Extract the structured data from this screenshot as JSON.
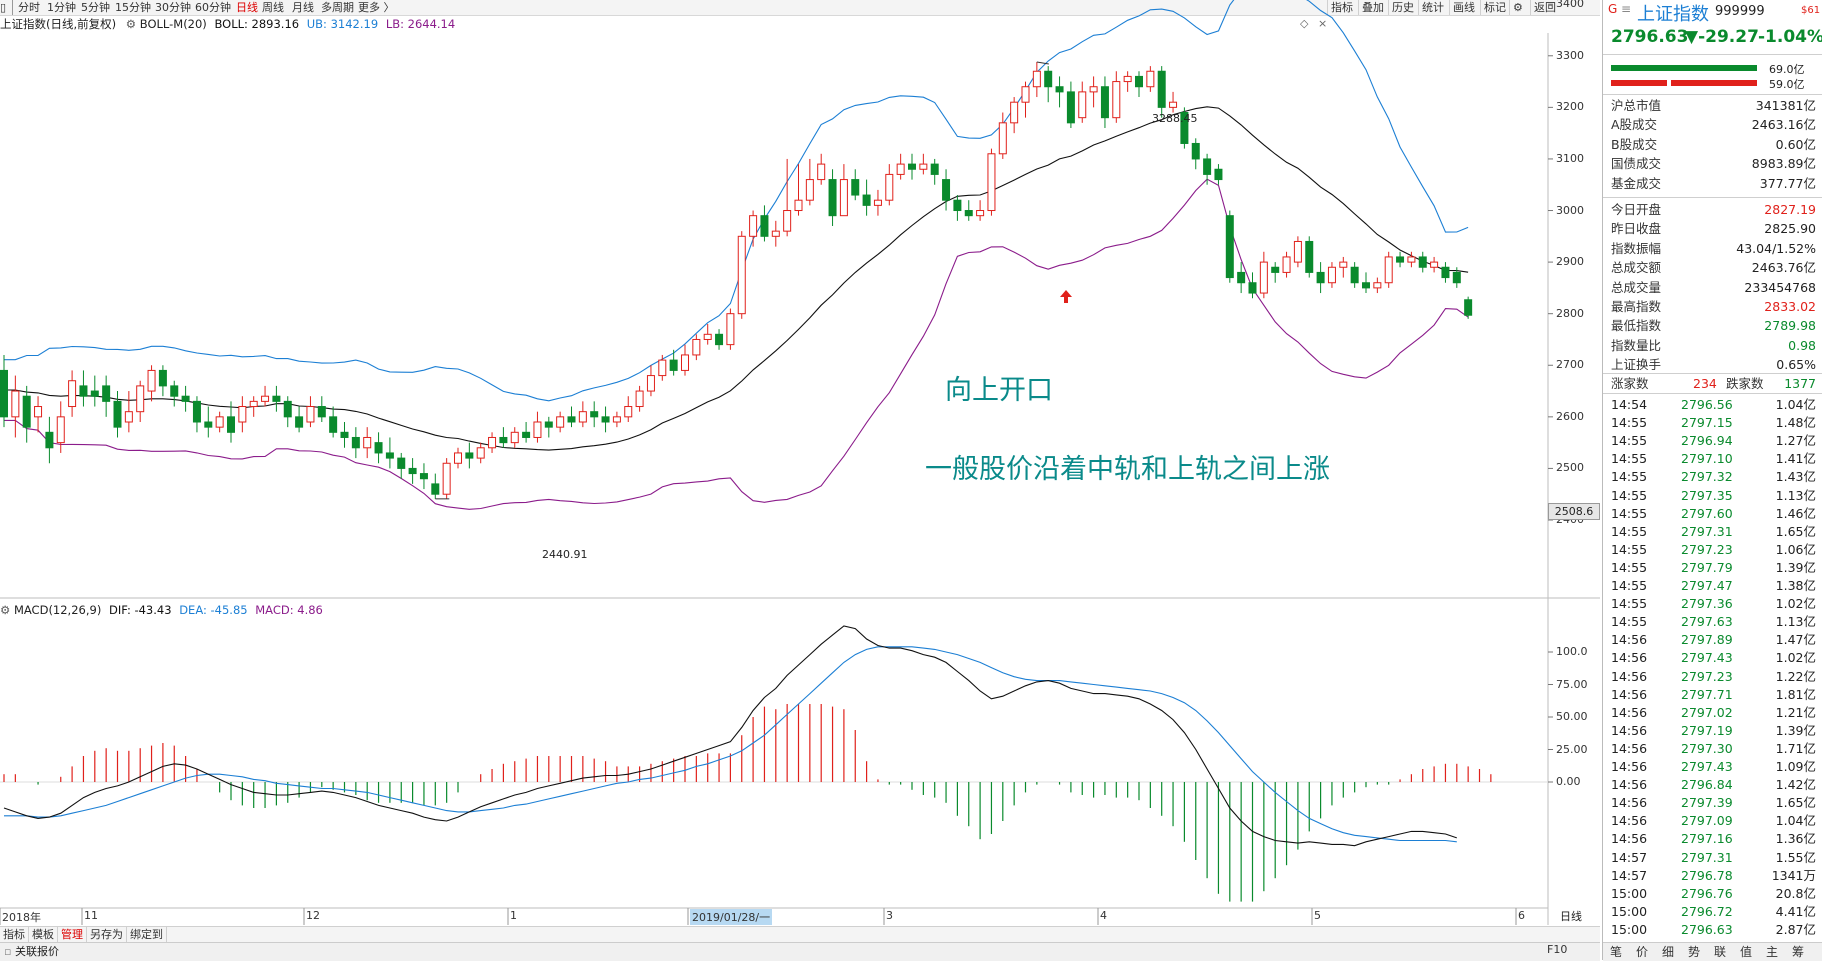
{
  "toolbar": {
    "timeframes": [
      "分时",
      "1分钟",
      "5分钟",
      "15分钟",
      "30分钟",
      "60分钟",
      "日线",
      "周线",
      "月线",
      "多周期",
      "更多 〉"
    ],
    "active_timeframe": "日线",
    "right_buttons": [
      "指标",
      "叠加",
      "历史",
      "统计",
      "画线",
      "标记",
      "⚙",
      "返回"
    ]
  },
  "chart_header": {
    "name": "上证指数(日线,前复权)",
    "indicator": "BOLL-M(20)",
    "boll_label": "BOLL: 2893.16",
    "ub_label": "UB: 3142.19",
    "lb_label": "LB: 2644.14"
  },
  "macd_header": {
    "name": "MACD(12,26,9)",
    "dif_label": "DIF: -43.43",
    "dea_label": "DEA: -45.85",
    "macd_label": "MACD: 4.86"
  },
  "price_axis": [
    "3400",
    "3300",
    "3200",
    "3100",
    "3000",
    "2900",
    "2800",
    "2700",
    "2600",
    "2500",
    "2400"
  ],
  "price_tag": "2508.6",
  "macd_axis": [
    "100.0",
    "75.00",
    "50.00",
    "25.00",
    "0.00"
  ],
  "date_axis": [
    "2018年",
    "11",
    "12",
    "1",
    "2019/01/28/一",
    "3",
    "4",
    "5",
    "6"
  ],
  "annotations": {
    "high_label": "3288.45",
    "low_label": "2440.91",
    "text_open_up": "向上开口",
    "text_trend": "一般股价沿着中轨和上轨之间上涨"
  },
  "bottom_tabs": [
    "指标",
    "模板",
    "管理",
    "另存为",
    "绑定到"
  ],
  "status_text": "关联报价",
  "axis_mode": "日线",
  "axis_buttons": [
    "+",
    "-"
  ],
  "colors": {
    "up": "#e0211b",
    "down": "#0a8a2d",
    "ub": "#1c7fd4",
    "mid": "#111111",
    "lb": "#8b1c8b",
    "annotation": "#0a8a8a"
  },
  "quote": {
    "flag": "G",
    "menu_icon": "≡",
    "name": "上证指数",
    "code": "999999",
    "badge": "$61",
    "price": "2796.63",
    "change": "▼-29.27",
    "pct": "-1.04%",
    "bar1_value": "69.0亿",
    "bar2_value": "59.0亿"
  },
  "stats": [
    {
      "k": "沪总市值",
      "v": "341381亿",
      "c": "blk"
    },
    {
      "k": "A股成交",
      "v": "2463.16亿",
      "c": "blk"
    },
    {
      "k": "B股成交",
      "v": "0.60亿",
      "c": "blk"
    },
    {
      "k": "国债成交",
      "v": "8983.89亿",
      "c": "blk"
    },
    {
      "k": "基金成交",
      "v": "377.77亿",
      "c": "blk"
    },
    {
      "k": "今日开盘",
      "v": "2827.19",
      "c": "red"
    },
    {
      "k": "昨日收盘",
      "v": "2825.90",
      "c": "blk"
    },
    {
      "k": "指数振幅",
      "v": "43.04/1.52%",
      "c": "blk"
    },
    {
      "k": "总成交额",
      "v": "2463.76亿",
      "c": "blk"
    },
    {
      "k": "总成交量",
      "v": "233454768",
      "c": "blk"
    },
    {
      "k": "最高指数",
      "v": "2833.02",
      "c": "red"
    },
    {
      "k": "最低指数",
      "v": "2789.98",
      "c": "green"
    },
    {
      "k": "指数量比",
      "v": "0.98",
      "c": "green"
    },
    {
      "k": "上证换手",
      "v": "0.65%",
      "c": "blk"
    }
  ],
  "breadth": {
    "up_label": "涨家数",
    "up": "234",
    "down_label": "跌家数",
    "down": "1377"
  },
  "ticks": [
    [
      "14:54",
      "2796.56",
      "1.04亿"
    ],
    [
      "14:55",
      "2797.15",
      "1.48亿"
    ],
    [
      "14:55",
      "2796.94",
      "1.27亿"
    ],
    [
      "14:55",
      "2797.10",
      "1.41亿"
    ],
    [
      "14:55",
      "2797.32",
      "1.43亿"
    ],
    [
      "14:55",
      "2797.35",
      "1.13亿"
    ],
    [
      "14:55",
      "2797.60",
      "1.46亿"
    ],
    [
      "14:55",
      "2797.31",
      "1.65亿"
    ],
    [
      "14:55",
      "2797.23",
      "1.06亿"
    ],
    [
      "14:55",
      "2797.79",
      "1.39亿"
    ],
    [
      "14:55",
      "2797.47",
      "1.38亿"
    ],
    [
      "14:55",
      "2797.36",
      "1.02亿"
    ],
    [
      "14:55",
      "2797.63",
      "1.13亿"
    ],
    [
      "14:56",
      "2797.89",
      "1.47亿"
    ],
    [
      "14:56",
      "2797.43",
      "1.02亿"
    ],
    [
      "14:56",
      "2797.23",
      "1.22亿"
    ],
    [
      "14:56",
      "2797.71",
      "1.81亿"
    ],
    [
      "14:56",
      "2797.02",
      "1.21亿"
    ],
    [
      "14:56",
      "2797.19",
      "1.39亿"
    ],
    [
      "14:56",
      "2797.30",
      "1.71亿"
    ],
    [
      "14:56",
      "2797.43",
      "1.09亿"
    ],
    [
      "14:56",
      "2796.84",
      "1.42亿"
    ],
    [
      "14:56",
      "2797.39",
      "1.65亿"
    ],
    [
      "14:56",
      "2797.09",
      "1.04亿"
    ],
    [
      "14:56",
      "2797.16",
      "1.36亿"
    ],
    [
      "14:57",
      "2797.31",
      "1.55亿"
    ],
    [
      "14:57",
      "2796.78",
      "1341万"
    ],
    [
      "15:00",
      "2796.76",
      "20.8亿"
    ],
    [
      "15:00",
      "2796.72",
      "4.41亿"
    ],
    [
      "15:00",
      "2796.63",
      "2.87亿"
    ]
  ],
  "right_tabs": [
    "笔",
    "价",
    "细",
    "势",
    "联",
    "值",
    "主",
    "筹"
  ],
  "f10": "F10",
  "chart_data": {
    "type": "candlestick",
    "title": "上证指数(日线,前复权)",
    "ylim": [
      2380,
      3460
    ],
    "boll": {
      "mid": 2893.16,
      "ub": 3142.19,
      "lb": 2644.14
    },
    "candles": [
      [
        2690,
        2600,
        2720,
        2580
      ],
      [
        2600,
        2650,
        2680,
        2560
      ],
      [
        2640,
        2580,
        2660,
        2550
      ],
      [
        2600,
        2620,
        2640,
        2570
      ],
      [
        2570,
        2540,
        2600,
        2510
      ],
      [
        2550,
        2600,
        2630,
        2530
      ],
      [
        2620,
        2670,
        2690,
        2600
      ],
      [
        2660,
        2640,
        2690,
        2620
      ],
      [
        2650,
        2640,
        2680,
        2620
      ],
      [
        2660,
        2630,
        2680,
        2600
      ],
      [
        2630,
        2580,
        2650,
        2560
      ],
      [
        2590,
        2610,
        2650,
        2570
      ],
      [
        2610,
        2660,
        2670,
        2590
      ],
      [
        2650,
        2690,
        2700,
        2630
      ],
      [
        2690,
        2660,
        2700,
        2640
      ],
      [
        2660,
        2640,
        2670,
        2620
      ],
      [
        2640,
        2630,
        2660,
        2610
      ],
      [
        2630,
        2590,
        2640,
        2570
      ],
      [
        2590,
        2580,
        2620,
        2560
      ],
      [
        2580,
        2600,
        2610,
        2570
      ],
      [
        2600,
        2570,
        2630,
        2550
      ],
      [
        2590,
        2620,
        2640,
        2570
      ],
      [
        2620,
        2630,
        2640,
        2600
      ],
      [
        2630,
        2640,
        2660,
        2620
      ],
      [
        2640,
        2630,
        2660,
        2610
      ],
      [
        2630,
        2600,
        2640,
        2580
      ],
      [
        2600,
        2580,
        2620,
        2570
      ],
      [
        2590,
        2620,
        2640,
        2580
      ],
      [
        2620,
        2600,
        2640,
        2590
      ],
      [
        2600,
        2570,
        2620,
        2560
      ],
      [
        2570,
        2560,
        2590,
        2540
      ],
      [
        2560,
        2540,
        2580,
        2520
      ],
      [
        2540,
        2560,
        2580,
        2520
      ],
      [
        2550,
        2530,
        2570,
        2510
      ],
      [
        2530,
        2520,
        2560,
        2500
      ],
      [
        2520,
        2500,
        2530,
        2480
      ],
      [
        2500,
        2490,
        2520,
        2470
      ],
      [
        2490,
        2480,
        2510,
        2460
      ],
      [
        2470,
        2450,
        2490,
        2441
      ],
      [
        2450,
        2510,
        2520,
        2441
      ],
      [
        2510,
        2530,
        2540,
        2500
      ],
      [
        2530,
        2520,
        2550,
        2500
      ],
      [
        2520,
        2540,
        2550,
        2510
      ],
      [
        2540,
        2560,
        2570,
        2530
      ],
      [
        2560,
        2550,
        2580,
        2540
      ],
      [
        2550,
        2570,
        2580,
        2540
      ],
      [
        2570,
        2560,
        2590,
        2550
      ],
      [
        2560,
        2590,
        2610,
        2550
      ],
      [
        2590,
        2580,
        2600,
        2560
      ],
      [
        2580,
        2600,
        2610,
        2570
      ],
      [
        2600,
        2590,
        2620,
        2580
      ],
      [
        2590,
        2610,
        2630,
        2580
      ],
      [
        2610,
        2600,
        2630,
        2580
      ],
      [
        2600,
        2590,
        2620,
        2570
      ],
      [
        2590,
        2600,
        2610,
        2580
      ],
      [
        2600,
        2620,
        2640,
        2590
      ],
      [
        2620,
        2650,
        2660,
        2610
      ],
      [
        2650,
        2680,
        2700,
        2640
      ],
      [
        2680,
        2710,
        2720,
        2670
      ],
      [
        2710,
        2690,
        2730,
        2680
      ],
      [
        2690,
        2720,
        2740,
        2680
      ],
      [
        2720,
        2750,
        2760,
        2710
      ],
      [
        2750,
        2760,
        2780,
        2740
      ],
      [
        2760,
        2740,
        2770,
        2730
      ],
      [
        2740,
        2800,
        2810,
        2730
      ],
      [
        2800,
        2950,
        2960,
        2790
      ],
      [
        2950,
        2990,
        3000,
        2930
      ],
      [
        2990,
        2950,
        3010,
        2940
      ],
      [
        2950,
        2960,
        2980,
        2930
      ],
      [
        2960,
        3000,
        3100,
        2950
      ],
      [
        3000,
        3020,
        3090,
        2990
      ],
      [
        3020,
        3060,
        3100,
        3010
      ],
      [
        3060,
        3090,
        3110,
        3050
      ],
      [
        3060,
        2990,
        3080,
        2970
      ],
      [
        2990,
        3060,
        3090,
        2990
      ],
      [
        3060,
        3030,
        3080,
        3020
      ],
      [
        3030,
        3010,
        3060,
        2990
      ],
      [
        3010,
        3020,
        3040,
        2990
      ],
      [
        3020,
        3070,
        3090,
        3010
      ],
      [
        3070,
        3090,
        3110,
        3060
      ],
      [
        3090,
        3080,
        3110,
        3060
      ],
      [
        3080,
        3090,
        3110,
        3070
      ],
      [
        3090,
        3070,
        3100,
        3050
      ],
      [
        3060,
        3020,
        3080,
        3000
      ],
      [
        3020,
        3000,
        3030,
        2980
      ],
      [
        3000,
        2990,
        3020,
        2980
      ],
      [
        2990,
        3000,
        3020,
        2980
      ],
      [
        3000,
        3110,
        3120,
        2990
      ],
      [
        3110,
        3170,
        3190,
        3100
      ],
      [
        3170,
        3210,
        3220,
        3150
      ],
      [
        3210,
        3240,
        3250,
        3180
      ],
      [
        3240,
        3270,
        3288,
        3220
      ],
      [
        3270,
        3240,
        3280,
        3210
      ],
      [
        3240,
        3230,
        3260,
        3200
      ],
      [
        3230,
        3170,
        3250,
        3160
      ],
      [
        3180,
        3230,
        3250,
        3170
      ],
      [
        3230,
        3240,
        3260,
        3200
      ],
      [
        3240,
        3180,
        3260,
        3160
      ],
      [
        3180,
        3250,
        3270,
        3170
      ],
      [
        3250,
        3260,
        3270,
        3230
      ],
      [
        3260,
        3240,
        3270,
        3220
      ],
      [
        3240,
        3270,
        3280,
        3230
      ],
      [
        3270,
        3200,
        3280,
        3180
      ],
      [
        3200,
        3210,
        3230,
        3190
      ],
      [
        3190,
        3130,
        3200,
        3120
      ],
      [
        3130,
        3100,
        3140,
        3080
      ],
      [
        3100,
        3070,
        3110,
        3050
      ],
      [
        3080,
        3060,
        3090,
        3050
      ],
      [
        2990,
        2870,
        3000,
        2860
      ],
      [
        2880,
        2860,
        2900,
        2840
      ],
      [
        2860,
        2840,
        2880,
        2830
      ],
      [
        2840,
        2900,
        2920,
        2830
      ],
      [
        2890,
        2880,
        2900,
        2860
      ],
      [
        2880,
        2910,
        2920,
        2870
      ],
      [
        2900,
        2940,
        2950,
        2890
      ],
      [
        2940,
        2880,
        2950,
        2870
      ],
      [
        2880,
        2860,
        2900,
        2840
      ],
      [
        2860,
        2890,
        2900,
        2850
      ],
      [
        2890,
        2900,
        2910,
        2870
      ],
      [
        2890,
        2860,
        2900,
        2850
      ],
      [
        2860,
        2850,
        2880,
        2840
      ],
      [
        2850,
        2860,
        2870,
        2840
      ],
      [
        2860,
        2910,
        2920,
        2850
      ],
      [
        2910,
        2900,
        2920,
        2890
      ],
      [
        2900,
        2910,
        2920,
        2890
      ],
      [
        2910,
        2890,
        2920,
        2880
      ],
      [
        2890,
        2900,
        2910,
        2880
      ],
      [
        2890,
        2870,
        2900,
        2860
      ],
      [
        2880,
        2860,
        2890,
        2850
      ],
      [
        2827,
        2797,
        2833,
        2790
      ]
    ],
    "macd": {
      "dif": [
        -20,
        -23,
        -26,
        -28,
        -27,
        -24,
        -18,
        -12,
        -8,
        -5,
        -3,
        0,
        4,
        8,
        12,
        14,
        13,
        10,
        6,
        2,
        -2,
        -5,
        -8,
        -9,
        -10,
        -10,
        -9,
        -8,
        -7,
        -8,
        -10,
        -12,
        -15,
        -18,
        -20,
        -22,
        -24,
        -27,
        -29,
        -30,
        -27,
        -23,
        -19,
        -16,
        -13,
        -10,
        -8,
        -5,
        -3,
        -1,
        1,
        3,
        4,
        5,
        5,
        6,
        8,
        10,
        13,
        16,
        19,
        22,
        25,
        28,
        31,
        42,
        55,
        65,
        72,
        82,
        90,
        98,
        106,
        113,
        120,
        118,
        110,
        105,
        103,
        103,
        101,
        98,
        96,
        92,
        85,
        78,
        70,
        64,
        66,
        70,
        74,
        77,
        78,
        76,
        72,
        70,
        68,
        68,
        67,
        66,
        64,
        60,
        55,
        48,
        38,
        25,
        10,
        -5,
        -20,
        -30,
        -38,
        -42,
        -45,
        -46,
        -47,
        -46,
        -47,
        -48,
        -48,
        -49,
        -46,
        -44,
        -42,
        -40,
        -38,
        -38,
        -39,
        -40,
        -43
      ],
      "dea": [
        -26,
        -26,
        -26,
        -27,
        -27,
        -26,
        -24,
        -22,
        -20,
        -18,
        -15,
        -12,
        -9,
        -6,
        -3,
        0,
        3,
        5,
        6,
        6,
        5,
        4,
        2,
        1,
        -1,
        -2,
        -3,
        -4,
        -5,
        -5,
        -6,
        -7,
        -8,
        -10,
        -12,
        -14,
        -16,
        -18,
        -20,
        -22,
        -23,
        -23,
        -22,
        -21,
        -20,
        -18,
        -17,
        -15,
        -13,
        -11,
        -9,
        -7,
        -5,
        -3,
        -1,
        0,
        2,
        3,
        5,
        7,
        9,
        12,
        14,
        17,
        20,
        24,
        30,
        36,
        44,
        52,
        60,
        68,
        76,
        84,
        92,
        98,
        102,
        104,
        104,
        104,
        104,
        103,
        102,
        100,
        98,
        95,
        92,
        88,
        84,
        81,
        79,
        78,
        78,
        78,
        77,
        76,
        75,
        74,
        73,
        72,
        71,
        70,
        68,
        65,
        61,
        55,
        47,
        38,
        28,
        18,
        8,
        0,
        -8,
        -15,
        -22,
        -28,
        -32,
        -36,
        -39,
        -41,
        -42,
        -43,
        -44,
        -45,
        -45,
        -45,
        -45,
        -45,
        -46
      ],
      "hist": [
        3,
        3,
        0,
        -1,
        0,
        2,
        6,
        10,
        12,
        13,
        12,
        12,
        13,
        14,
        15,
        14,
        10,
        5,
        0,
        -4,
        -7,
        -9,
        -10,
        -10,
        -9,
        -8,
        -6,
        -4,
        -2,
        -3,
        -4,
        -5,
        -7,
        -8,
        -8,
        -8,
        -8,
        -9,
        -9,
        -8,
        -4,
        0,
        3,
        5,
        7,
        8,
        9,
        10,
        10,
        10,
        10,
        10,
        9,
        8,
        6,
        6,
        6,
        7,
        8,
        9,
        10,
        10,
        11,
        11,
        11,
        18,
        25,
        29,
        28,
        30,
        30,
        30,
        30,
        29,
        28,
        20,
        8,
        1,
        -1,
        -1,
        -3,
        -5,
        -6,
        -8,
        -13,
        -17,
        -22,
        -20,
        -15,
        -9,
        -4,
        -1,
        0,
        -1,
        -4,
        -5,
        -6,
        -5,
        -6,
        -6,
        -7,
        -10,
        -13,
        -17,
        -23,
        -30,
        -37,
        -43,
        -46,
        -46,
        -46,
        -42,
        -37,
        -32,
        -26,
        -19,
        -14,
        -9,
        -6,
        -4,
        -2,
        -1,
        -1,
        1,
        3,
        5,
        6,
        7,
        7,
        6,
        5,
        3
      ]
    }
  }
}
